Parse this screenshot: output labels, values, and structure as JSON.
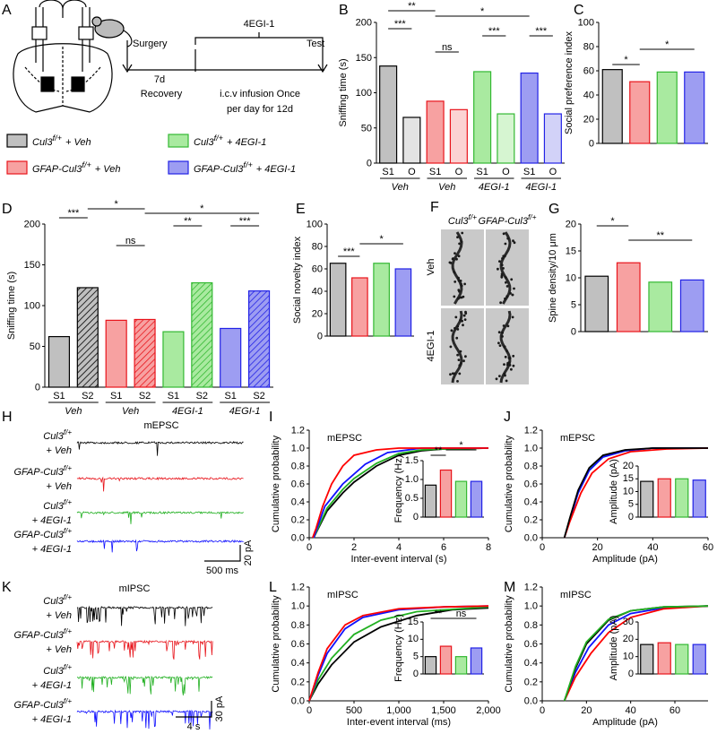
{
  "panel_A": {
    "letter": "A",
    "surgery": "Surgery",
    "days": "7d",
    "drug": "4EGI-1",
    "test": "Test",
    "recovery": "Recovery",
    "infusion_1": "i.c.v infusion Once",
    "infusion_2": "per day for 12d"
  },
  "legend": [
    {
      "gene": "Cul3",
      "allele": "f/+",
      "treatment": "+ Veh",
      "color": "#c0c0c0",
      "edge": "#000000"
    },
    {
      "gene": "Cul3",
      "allele": "f/+",
      "treatment": "+ 4EGI-1",
      "color": "#a9eaa0",
      "edge": "#33b832"
    },
    {
      "gene": "GFAP-Cul3",
      "allele": "f/+",
      "treatment": "+ Veh",
      "color": "#f7a1a1",
      "edge": "#e8141b"
    },
    {
      "gene": "GFAP-Cul3",
      "allele": "f/+",
      "treatment": "+ 4EGI-1",
      "color": "#9d9df2",
      "edge": "#2222e6"
    }
  ],
  "chart_data": [
    {
      "type": "bar",
      "letter": "B",
      "ylabel": "Sniffing time (s)",
      "categories": [
        "S1",
        "O",
        "S1",
        "O",
        "S1",
        "O",
        "S1",
        "O"
      ],
      "groups": [
        "Veh",
        "Veh",
        "4EGI-1",
        "4EGI-1"
      ],
      "values": [
        138,
        65,
        88,
        76,
        130,
        70,
        128,
        70
      ],
      "colors": [
        "#c0c0c0",
        "#e3e3e3",
        "#f7a1a1",
        "#fbd3d3",
        "#a9eaa0",
        "#d6f5d1",
        "#9d9df2",
        "#d2d2f8"
      ],
      "edges": [
        "#000000",
        "#000000",
        "#e8141b",
        "#e8141b",
        "#33b832",
        "#33b832",
        "#2222e6",
        "#2222e6"
      ],
      "ylim": [
        0,
        200
      ],
      "yticks": [
        0,
        50,
        100,
        150,
        200
      ],
      "annotations": [
        "**",
        "*",
        "***",
        "ns",
        "***",
        "***"
      ]
    },
    {
      "type": "bar",
      "letter": "C",
      "ylabel": "Social preference index",
      "values": [
        61,
        51,
        59,
        59
      ],
      "colors": [
        "#c0c0c0",
        "#f7a1a1",
        "#a9eaa0",
        "#9d9df2"
      ],
      "edges": [
        "#000000",
        "#e8141b",
        "#33b832",
        "#2222e6"
      ],
      "ylim": [
        0,
        100
      ],
      "yticks": [
        0,
        20,
        40,
        60,
        80,
        100
      ],
      "annotations": [
        "*",
        "*"
      ]
    },
    {
      "type": "bar",
      "letter": "D",
      "ylabel": "Sniffing time (s)",
      "categories": [
        "S1",
        "S2",
        "S1",
        "S2",
        "S1",
        "S2",
        "S1",
        "S2"
      ],
      "groups": [
        "Veh",
        "Veh",
        "4EGI-1",
        "4EGI-1"
      ],
      "values": [
        62,
        122,
        82,
        83,
        68,
        128,
        72,
        118
      ],
      "colors": [
        "#c0c0c0",
        "#c0c0c0",
        "#f7a1a1",
        "#f7a1a1",
        "#a9eaa0",
        "#a9eaa0",
        "#9d9df2",
        "#9d9df2"
      ],
      "edges": [
        "#000000",
        "#000000",
        "#e8141b",
        "#e8141b",
        "#33b832",
        "#33b832",
        "#2222e6",
        "#2222e6"
      ],
      "patterns": [
        "solid",
        "hatched",
        "solid",
        "hatched",
        "solid",
        "hatched",
        "solid",
        "hatched"
      ],
      "ylim": [
        0,
        200
      ],
      "yticks": [
        0,
        50,
        100,
        150,
        200
      ],
      "annotations": [
        "***",
        "*",
        "*",
        "ns",
        "**",
        "***"
      ]
    },
    {
      "type": "bar",
      "letter": "E",
      "ylabel": "Social novelty index",
      "values": [
        65,
        52,
        65,
        60
      ],
      "colors": [
        "#c0c0c0",
        "#f7a1a1",
        "#a9eaa0",
        "#9d9df2"
      ],
      "edges": [
        "#000000",
        "#e8141b",
        "#33b832",
        "#2222e6"
      ],
      "ylim": [
        0,
        100
      ],
      "yticks": [
        0,
        20,
        40,
        60,
        80,
        100
      ],
      "annotations": [
        "***",
        "*"
      ]
    },
    {
      "type": "bar",
      "letter": "G",
      "ylabel": "Spine density/10 μm",
      "values": [
        10.3,
        12.8,
        9.2,
        9.6
      ],
      "colors": [
        "#c0c0c0",
        "#f7a1a1",
        "#a9eaa0",
        "#9d9df2"
      ],
      "edges": [
        "#000000",
        "#e8141b",
        "#33b832",
        "#2222e6"
      ],
      "ylim": [
        0,
        20
      ],
      "yticks": [
        0,
        5,
        10,
        15,
        20
      ],
      "annotations": [
        "*",
        "**"
      ]
    },
    {
      "type": "line",
      "letter": "I",
      "title": "mEPSC",
      "xlabel": "Inter-event interval (s)",
      "ylabel": "Cumulative probability",
      "xlim": [
        0,
        8
      ],
      "xticks": [
        0,
        2,
        4,
        6,
        8
      ],
      "ylim": [
        0,
        1.2
      ],
      "yticks": [
        {
          "value": 0,
          "label": "0.0"
        },
        0.2,
        0.4,
        0.6,
        0.8,
        {
          "value": 1,
          "label": "1.0"
        },
        1.2
      ],
      "series": [
        {
          "color": "#000000",
          "x": [
            0.2,
            0.4,
            0.8,
            1.5,
            2,
            3,
            4,
            5,
            6,
            8
          ],
          "y": [
            0,
            0.1,
            0.3,
            0.5,
            0.62,
            0.8,
            0.92,
            0.97,
            0.99,
            1
          ]
        },
        {
          "color": "#22b022",
          "x": [
            0.2,
            0.4,
            0.8,
            1.5,
            2,
            3,
            4,
            5,
            6,
            8
          ],
          "y": [
            0,
            0.11,
            0.33,
            0.54,
            0.66,
            0.83,
            0.94,
            0.98,
            0.99,
            1
          ]
        },
        {
          "color": "#1010ff",
          "x": [
            0.2,
            0.4,
            0.7,
            1.5,
            2.5,
            3.5,
            5,
            8
          ],
          "y": [
            0,
            0.14,
            0.35,
            0.6,
            0.82,
            0.95,
            1,
            1
          ]
        },
        {
          "color": "#ff0000",
          "x": [
            0.15,
            0.3,
            0.6,
            1,
            1.5,
            2,
            3,
            4,
            8
          ],
          "y": [
            0,
            0.1,
            0.35,
            0.6,
            0.8,
            0.92,
            0.98,
            1,
            1
          ]
        }
      ],
      "inset": {
        "type": "bar",
        "ylabel": "Frequency (Hz)",
        "values": [
          0.85,
          1.25,
          0.95,
          0.95
        ],
        "colors": [
          "#c0c0c0",
          "#f7a1a1",
          "#a9eaa0",
          "#9d9df2"
        ],
        "edges": [
          "#000000",
          "#e8141b",
          "#33b832",
          "#2222e6"
        ],
        "ylim": [
          0,
          1.5
        ],
        "yticks": [
          0,
          0.5,
          {
            "value": 1,
            "label": "1.0"
          },
          1.5
        ],
        "annotations": [
          "**",
          "*"
        ]
      }
    },
    {
      "type": "line",
      "letter": "J",
      "title": "mEPSC",
      "xlabel": "Amplitude (pA)",
      "ylabel": "Cumulative probability",
      "xlim": [
        0,
        60
      ],
      "xticks": [
        0,
        20,
        40,
        60
      ],
      "ylim": [
        0,
        1.2
      ],
      "yticks": [
        {
          "value": 0,
          "label": "0.0"
        },
        0.2,
        0.4,
        0.6,
        0.8,
        {
          "value": 1,
          "label": "1.0"
        },
        1.2
      ],
      "series": [
        {
          "color": "#22b022",
          "x": [
            8,
            10,
            13,
            17,
            22,
            30,
            40,
            60
          ],
          "y": [
            0,
            0.21,
            0.52,
            0.77,
            0.91,
            0.97,
            1,
            1
          ]
        },
        {
          "color": "#1010ff",
          "x": [
            8,
            10,
            13,
            17,
            22,
            30,
            40,
            60
          ],
          "y": [
            0,
            0.2,
            0.5,
            0.75,
            0.9,
            0.97,
            1,
            1
          ]
        },
        {
          "color": "#ff0000",
          "x": [
            8,
            10,
            14,
            18,
            24,
            32,
            45,
            60
          ],
          "y": [
            0,
            0.18,
            0.5,
            0.72,
            0.88,
            0.96,
            0.99,
            1
          ]
        },
        {
          "color": "#000000",
          "x": [
            8,
            10,
            13,
            17,
            22,
            30,
            40,
            60
          ],
          "y": [
            0,
            0.22,
            0.53,
            0.78,
            0.92,
            0.98,
            1,
            1
          ]
        }
      ],
      "inset": {
        "type": "bar",
        "ylabel": "Amplitude (pA)",
        "values": [
          14,
          15,
          15,
          14.5
        ],
        "colors": [
          "#c0c0c0",
          "#f7a1a1",
          "#a9eaa0",
          "#9d9df2"
        ],
        "edges": [
          "#000000",
          "#e8141b",
          "#33b832",
          "#2222e6"
        ],
        "ylim": [
          0,
          20
        ],
        "yticks": [
          0,
          5,
          10,
          15,
          20
        ]
      }
    },
    {
      "type": "line",
      "letter": "L",
      "title": "mIPSC",
      "xlabel": "Inter-event interval (ms)",
      "ylabel": "Cumulative probability",
      "xlim": [
        0,
        2000
      ],
      "xticks": [
        0,
        500,
        {
          "value": 1000,
          "label": "1,000"
        },
        {
          "value": 1500,
          "label": "1,500"
        },
        {
          "value": 2000,
          "label": "2,000"
        }
      ],
      "ylim": [
        0,
        1.2
      ],
      "yticks": [
        {
          "value": 0,
          "label": "0.0"
        },
        0.2,
        0.4,
        0.6,
        0.8,
        {
          "value": 1,
          "label": "1.0"
        },
        1.2
      ],
      "series": [
        {
          "color": "#000000",
          "x": [
            0,
            100,
            250,
            500,
            800,
            1200,
            1600,
            2000
          ],
          "y": [
            0,
            0.18,
            0.38,
            0.62,
            0.78,
            0.9,
            0.96,
            0.98
          ]
        },
        {
          "color": "#22b022",
          "x": [
            0,
            100,
            250,
            500,
            800,
            1200,
            2000
          ],
          "y": [
            0,
            0.22,
            0.45,
            0.7,
            0.85,
            0.94,
            0.99
          ]
        },
        {
          "color": "#1010ff",
          "x": [
            0,
            100,
            200,
            400,
            600,
            1000,
            1500,
            2000
          ],
          "y": [
            0,
            0.27,
            0.5,
            0.76,
            0.88,
            0.96,
            0.99,
            1
          ]
        },
        {
          "color": "#ff0000",
          "x": [
            0,
            100,
            200,
            400,
            600,
            1000,
            1500,
            2000
          ],
          "y": [
            0,
            0.3,
            0.55,
            0.8,
            0.9,
            0.97,
            0.99,
            1
          ]
        }
      ],
      "inset": {
        "type": "bar",
        "ylabel": "Frequency (Hz)",
        "values": [
          5,
          8,
          5,
          7.5
        ],
        "colors": [
          "#c0c0c0",
          "#f7a1a1",
          "#a9eaa0",
          "#9d9df2"
        ],
        "edges": [
          "#000000",
          "#e8141b",
          "#33b832",
          "#2222e6"
        ],
        "ylim": [
          0,
          15
        ],
        "yticks": [
          0,
          5,
          10,
          15
        ],
        "annotations": [
          "**",
          "ns"
        ]
      }
    },
    {
      "type": "line",
      "letter": "M",
      "title": "mIPSC",
      "xlabel": "Amplitude (pA)",
      "ylabel": "Cumulative probability",
      "xlim": [
        0,
        75
      ],
      "xticks": [
        0,
        20,
        40,
        60
      ],
      "ylim": [
        0,
        1.2
      ],
      "yticks": [
        {
          "value": 0,
          "label": "0.0"
        },
        0.2,
        0.4,
        0.6,
        0.8,
        {
          "value": 1,
          "label": "1.0"
        },
        1.2
      ],
      "series": [
        {
          "color": "#1010ff",
          "x": [
            10,
            15,
            21,
            30,
            40,
            55,
            75
          ],
          "y": [
            0,
            0.3,
            0.56,
            0.8,
            0.92,
            0.98,
            1
          ]
        },
        {
          "color": "#ff0000",
          "x": [
            10,
            15,
            22,
            30,
            40,
            55,
            75
          ],
          "y": [
            0,
            0.25,
            0.5,
            0.72,
            0.88,
            0.97,
            1
          ]
        },
        {
          "color": "#000000",
          "x": [
            10,
            15,
            20,
            30,
            40,
            55,
            75
          ],
          "y": [
            0,
            0.34,
            0.6,
            0.85,
            0.95,
            0.99,
            1
          ]
        },
        {
          "color": "#22b022",
          "x": [
            10,
            15,
            20,
            30,
            40,
            55,
            75
          ],
          "y": [
            0,
            0.36,
            0.62,
            0.86,
            0.95,
            0.99,
            1
          ]
        }
      ],
      "inset": {
        "type": "bar",
        "ylabel": "Amplitude (pA)",
        "values": [
          17,
          18,
          17,
          17
        ],
        "colors": [
          "#c0c0c0",
          "#f7a1a1",
          "#a9eaa0",
          "#9d9df2"
        ],
        "edges": [
          "#000000",
          "#e8141b",
          "#33b832",
          "#2222e6"
        ],
        "ylim": [
          0,
          30
        ],
        "yticks": [
          0,
          10,
          20,
          30
        ]
      }
    }
  ],
  "panel_F": {
    "letter": "F",
    "columns": [
      {
        "gene": "Cul3",
        "allele": "f/+"
      },
      {
        "gene": "GFAP-Cul3",
        "allele": "f/+"
      }
    ],
    "rows": [
      "Veh",
      "4EGI-1"
    ]
  },
  "panel_H": {
    "letter": "H",
    "title": "mEPSC",
    "scale_time": "500 ms",
    "scale_amp": "20 pA",
    "traces": [
      {
        "gene": "Cul3",
        "allele": "f/+",
        "treatment": "+ Veh",
        "color": "#000000"
      },
      {
        "gene": "GFAP-Cul3",
        "allele": "f/+",
        "treatment": "+ Veh",
        "color": "#e8141b"
      },
      {
        "gene": "Cul3",
        "allele": "f/+",
        "treatment": "+ 4EGI-1",
        "color": "#22b022"
      },
      {
        "gene": "GFAP-Cul3",
        "allele": "f/+",
        "treatment": "+ 4EGI-1",
        "color": "#1010ff"
      }
    ]
  },
  "panel_K": {
    "letter": "K",
    "title": "mIPSC",
    "scale_time": "4 s",
    "scale_amp": "30 pA",
    "traces": [
      {
        "gene": "Cul3",
        "allele": "f/+",
        "treatment": "+ Veh",
        "color": "#000000"
      },
      {
        "gene": "GFAP-Cul3",
        "allele": "f/+",
        "treatment": "+ Veh",
        "color": "#e8141b"
      },
      {
        "gene": "Cul3",
        "allele": "f/+",
        "treatment": "+ 4EGI-1",
        "color": "#22b022"
      },
      {
        "gene": "GFAP-Cul3",
        "allele": "f/+",
        "treatment": "+ 4EGI-1",
        "color": "#1010ff"
      }
    ]
  }
}
